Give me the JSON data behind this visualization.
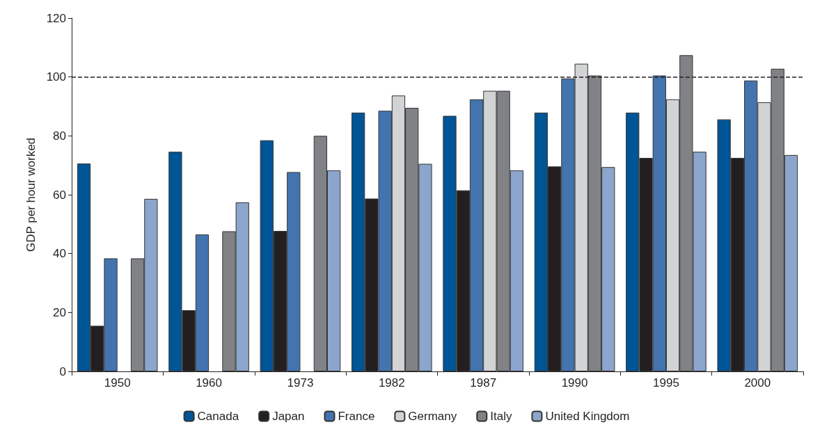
{
  "chart_data": {
    "type": "bar",
    "ylabel": "GDP per hour worked",
    "categories": [
      "1950",
      "1960",
      "1973",
      "1982",
      "1987",
      "1990",
      "1995",
      "2000"
    ],
    "series": [
      {
        "name": "Canada",
        "color": "#005596",
        "values": [
          70.6,
          74.6,
          78.5,
          87.9,
          86.8,
          87.9,
          87.9,
          85.6
        ]
      },
      {
        "name": "Japan",
        "color": "#231f20",
        "values": [
          15.5,
          20.8,
          47.7,
          58.7,
          61.5,
          69.6,
          72.5,
          72.5
        ]
      },
      {
        "name": "France",
        "color": "#4474b0",
        "values": [
          38.4,
          46.5,
          67.7,
          88.5,
          92.4,
          99.5,
          100.5,
          98.8
        ]
      },
      {
        "name": "Germany",
        "color": "#d1d3d4",
        "values": [
          null,
          null,
          null,
          93.7,
          95.3,
          104.5,
          92.4,
          91.4
        ]
      },
      {
        "name": "Italy",
        "color": "#808285",
        "values": [
          38.4,
          47.6,
          80,
          89.5,
          95.3,
          100.5,
          107.4,
          102.8
        ]
      },
      {
        "name": "United Kingdom",
        "color": "#8ca5cc",
        "values": [
          58.6,
          57.4,
          68.3,
          70.5,
          68.3,
          69.4,
          74.6,
          73.5
        ]
      }
    ],
    "ylim": [
      0,
      120
    ],
    "yticks": [
      0,
      20,
      40,
      60,
      80,
      100,
      120
    ],
    "grid": false,
    "legend": "bottom",
    "ref_lines": [
      {
        "axis": "y",
        "value": 100,
        "line_style": "dashed",
        "color": "#231f20"
      }
    ]
  }
}
